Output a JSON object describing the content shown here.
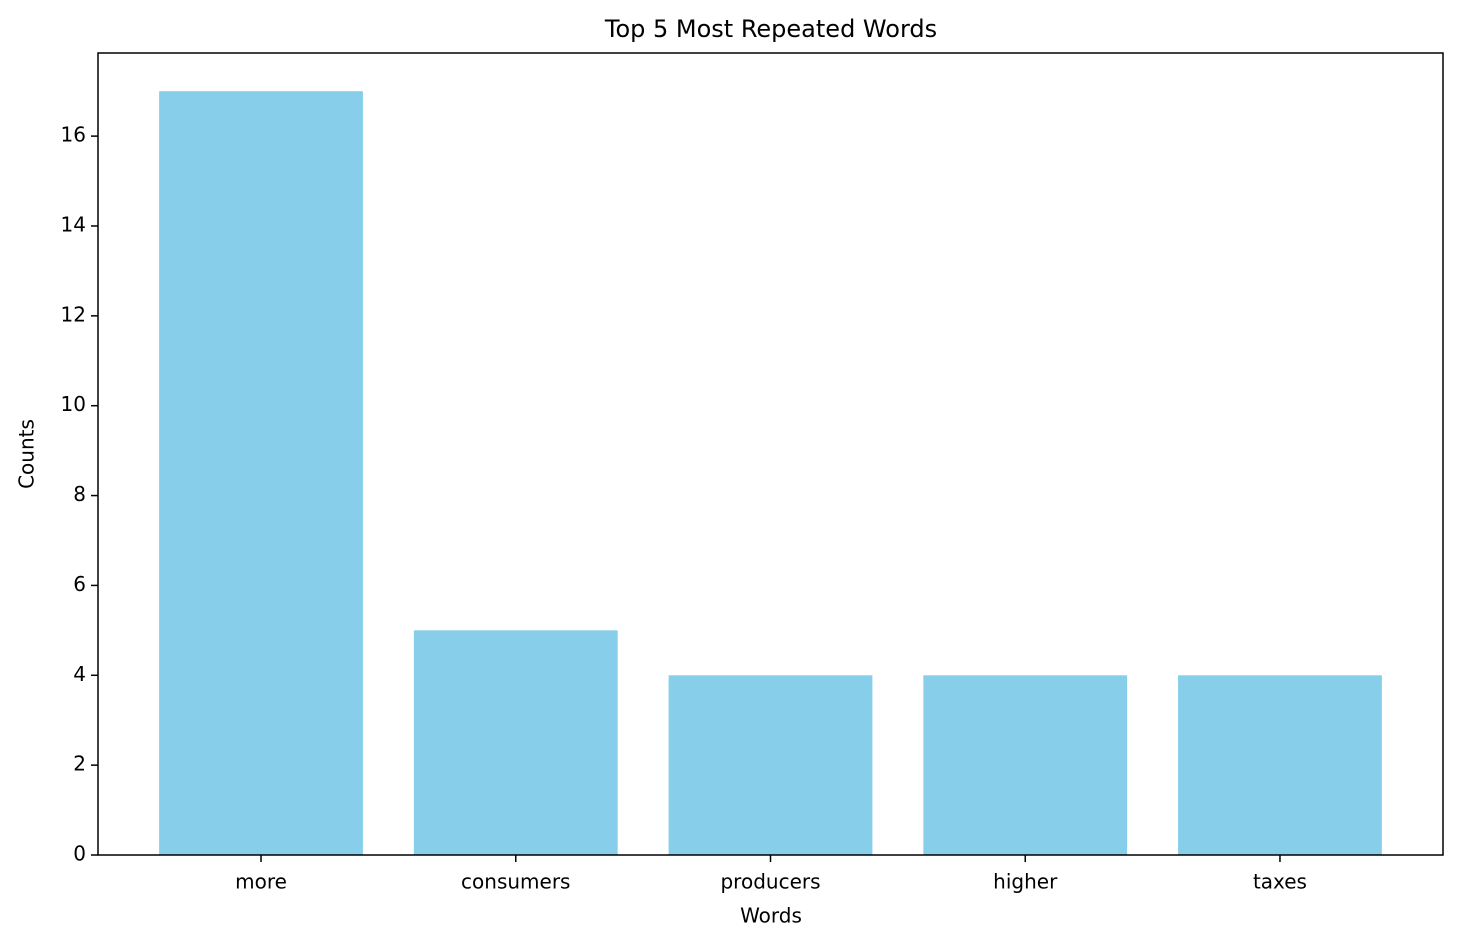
{
  "chart_data": {
    "type": "bar",
    "title": "Top 5 Most Repeated Words",
    "x_label": "Words",
    "y_label": "Counts",
    "categories": [
      "more",
      "consumers",
      "producers",
      "higher",
      "taxes"
    ],
    "values": [
      17,
      5,
      4,
      4,
      4
    ],
    "color": "#87ceeb",
    "ylim": [
      0,
      17.85
    ],
    "yticks": [
      0,
      2,
      4,
      6,
      8,
      10,
      12,
      14,
      16
    ]
  }
}
